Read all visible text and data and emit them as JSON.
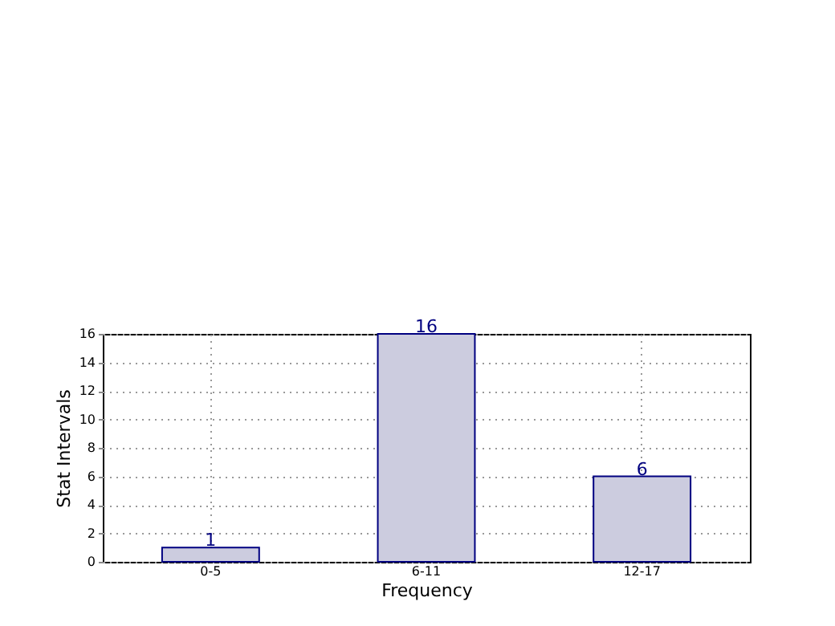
{
  "chart_data": {
    "type": "bar",
    "xlabel": "Frequency",
    "ylabel": "Stat Intervals",
    "categories": [
      "0-5",
      "6-11",
      "12-17"
    ],
    "values": [
      1,
      16,
      6
    ],
    "color": "#ccccdf",
    "ylim": [
      0,
      16
    ],
    "yticks": [
      0,
      2,
      4,
      6,
      8,
      10,
      12,
      14,
      16
    ],
    "grid": true,
    "data_labels": true
  }
}
